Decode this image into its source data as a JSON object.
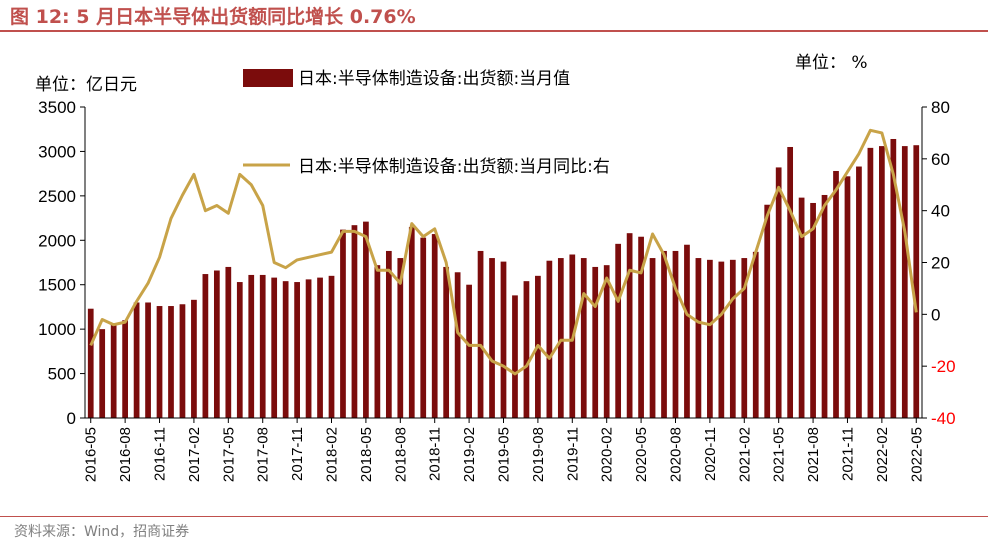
{
  "header": {
    "title": "图 12:  5 月日本半导体出货额同比增长 0.76%"
  },
  "footer": {
    "source": "资料来源：Wind，招商证券"
  },
  "colors": {
    "bar": "#7b0c0c",
    "line": "#c8a348",
    "accent": "#c0504d",
    "negative_tick": "#ff0000"
  },
  "chart_data": {
    "type": "bar",
    "left_unit": "单位：亿日元",
    "right_unit": "单位：  %",
    "left_axis": {
      "min": 0,
      "max": 3500,
      "ticks": [
        "0",
        "500",
        "1000",
        "1500",
        "2000",
        "2500",
        "3000",
        "3500"
      ]
    },
    "right_axis": {
      "min": -40,
      "max": 80,
      "ticks": [
        "-40",
        "-20",
        "0",
        "20",
        "40",
        "60",
        "80"
      ]
    },
    "x": [
      "2016-05",
      "2016-06",
      "2016-07",
      "2016-08",
      "2016-09",
      "2016-10",
      "2016-11",
      "2016-12",
      "2017-01",
      "2017-02",
      "2017-03",
      "2017-04",
      "2017-05",
      "2017-06",
      "2017-07",
      "2017-08",
      "2017-09",
      "2017-10",
      "2017-11",
      "2017-12",
      "2018-01",
      "2018-02",
      "2018-03",
      "2018-04",
      "2018-05",
      "2018-06",
      "2018-07",
      "2018-08",
      "2018-09",
      "2018-10",
      "2018-11",
      "2018-12",
      "2019-01",
      "2019-02",
      "2019-03",
      "2019-04",
      "2019-05",
      "2019-06",
      "2019-07",
      "2019-08",
      "2019-09",
      "2019-10",
      "2019-11",
      "2019-12",
      "2020-01",
      "2020-02",
      "2020-03",
      "2020-04",
      "2020-05",
      "2020-06",
      "2020-07",
      "2020-08",
      "2020-09",
      "2020-10",
      "2020-11",
      "2020-12",
      "2021-01",
      "2021-02",
      "2021-03",
      "2021-04",
      "2021-05",
      "2021-06",
      "2021-07",
      "2021-08",
      "2021-09",
      "2021-10",
      "2021-11",
      "2021-12",
      "2022-01",
      "2022-02",
      "2022-03",
      "2022-04",
      "2022-05"
    ],
    "x_tick_labels": [
      "2016-05",
      "2016-08",
      "2016-11",
      "2017-02",
      "2017-05",
      "2017-08",
      "2017-11",
      "2018-02",
      "2018-05",
      "2018-08",
      "2018-11",
      "2019-02",
      "2019-05",
      "2019-08",
      "2019-11",
      "2020-02",
      "2020-05",
      "2020-08",
      "2020-11",
      "2021-02",
      "2021-05",
      "2021-08",
      "2021-11",
      "2022-02",
      "2022-05"
    ],
    "series": [
      {
        "name": "日本:半导体制造设备:出货额:当月值",
        "type": "bar",
        "axis": "left",
        "values": [
          1230,
          1000,
          1050,
          1100,
          1300,
          1300,
          1260,
          1260,
          1280,
          1330,
          1620,
          1660,
          1700,
          1530,
          1610,
          1610,
          1580,
          1540,
          1530,
          1560,
          1580,
          1600,
          2120,
          2170,
          2210,
          1720,
          1880,
          1800,
          2150,
          2030,
          2070,
          1700,
          1640,
          1500,
          1880,
          1800,
          1760,
          1380,
          1540,
          1600,
          1770,
          1800,
          1840,
          1800,
          1700,
          1720,
          1960,
          2080,
          2040,
          1800,
          1880,
          1880,
          1950,
          1800,
          1780,
          1760,
          1780,
          1800,
          1870,
          2400,
          2820,
          3050,
          2480,
          2420,
          2510,
          2780,
          2720,
          2830,
          3040,
          3060,
          3140,
          3060,
          3070
        ]
      },
      {
        "name": "日本:半导体制造设备:出货额:当月同比:右",
        "type": "line",
        "axis": "right",
        "values": [
          -12,
          -2,
          -4,
          -3,
          5,
          12,
          22,
          37,
          46,
          54,
          40,
          42,
          39,
          54,
          50,
          42,
          20,
          18,
          21,
          22,
          23,
          24,
          32,
          32,
          30,
          17,
          17,
          12,
          35,
          30,
          33,
          20,
          -7,
          -12,
          -12,
          -18,
          -20,
          -23,
          -20,
          -12,
          -17,
          -10,
          -10,
          8,
          3,
          14,
          5,
          17,
          16,
          31,
          23,
          10,
          0,
          -3,
          -4,
          0,
          6,
          10,
          24,
          38,
          49,
          40,
          30,
          33,
          42,
          48,
          55,
          62,
          71,
          70,
          54,
          32,
          0.76
        ]
      }
    ]
  }
}
